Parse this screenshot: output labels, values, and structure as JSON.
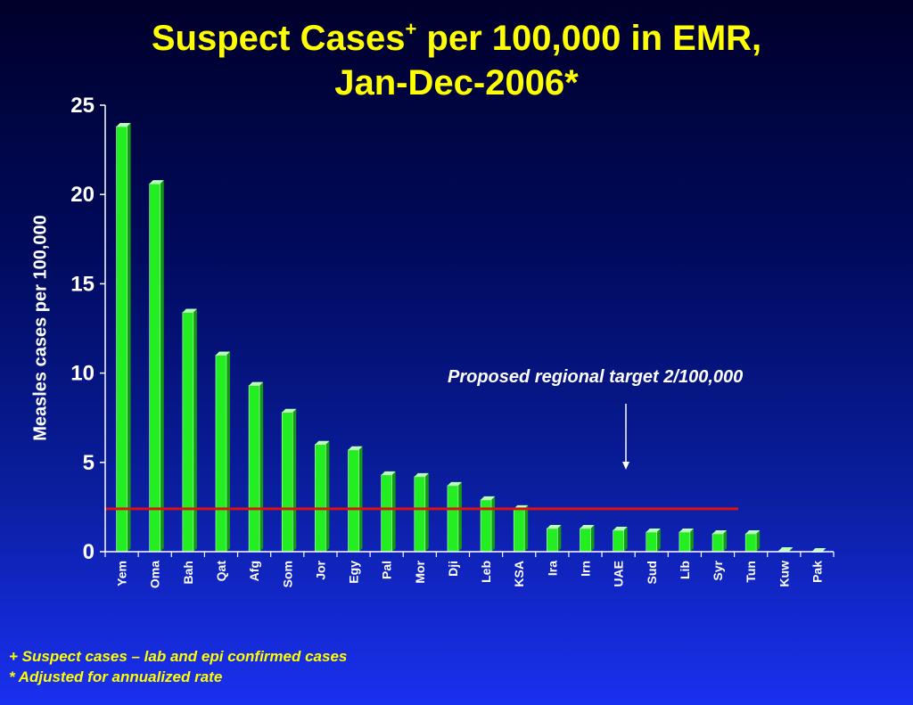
{
  "title": {
    "line1_a": "Suspect Cases",
    "line1_sup": "+",
    "line1_b": " per 100,000 in EMR,",
    "line2": "Jan-Dec-2006*"
  },
  "annotation": "Proposed regional target 2/100,000",
  "footnotes": [
    "+ Suspect cases – lab and epi confirmed cases",
    "* Adjusted for annualized rate"
  ],
  "colors": {
    "bar": "#22ee22",
    "target_line": "#dd1111",
    "title": "#ffff00"
  },
  "chart_data": {
    "type": "bar",
    "ylabel": "Measles cases per 100,000",
    "ylim": [
      0,
      25
    ],
    "yticks": [
      0,
      5,
      10,
      15,
      20,
      25
    ],
    "categories": [
      "Yem",
      "Oma",
      "Bah",
      "Qat",
      "Afg",
      "Som",
      "Jor",
      "Egy",
      "Pal",
      "Mor",
      "Dji",
      "Leb",
      "KSA",
      "Ira",
      "Irn",
      "UAE",
      "Sud",
      "Lib",
      "Syr",
      "Tun",
      "Kuw",
      "Pak"
    ],
    "values": [
      23.8,
      20.6,
      13.4,
      11.0,
      9.3,
      7.8,
      6.0,
      5.7,
      4.3,
      4.2,
      3.7,
      2.9,
      2.4,
      1.3,
      1.3,
      1.2,
      1.1,
      1.1,
      1.0,
      1.0,
      0.05,
      0.0
    ],
    "target_line": 2.4
  }
}
